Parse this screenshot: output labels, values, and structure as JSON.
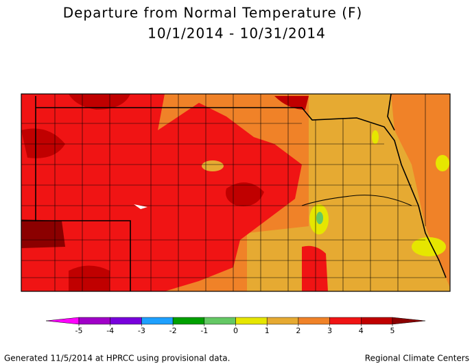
{
  "title": [
    "Departure from Normal Temperature (F)",
    "10/1/2014 - 10/31/2014"
  ],
  "legend": {
    "ticks": [
      -5,
      -4,
      -3,
      -2,
      -1,
      0,
      1,
      2,
      3,
      4,
      5
    ],
    "colors": [
      "#ff00ff",
      "#a000c8",
      "#7800dc",
      "#1ea0ff",
      "#00a000",
      "#64c864",
      "#e6e600",
      "#e6aa32",
      "#f08228",
      "#f01414",
      "#c00000",
      "#8b0000"
    ]
  },
  "footer": {
    "left": "Generated 11/5/2014 at HPRCC using provisional data.",
    "right": "Regional Climate Centers"
  }
}
